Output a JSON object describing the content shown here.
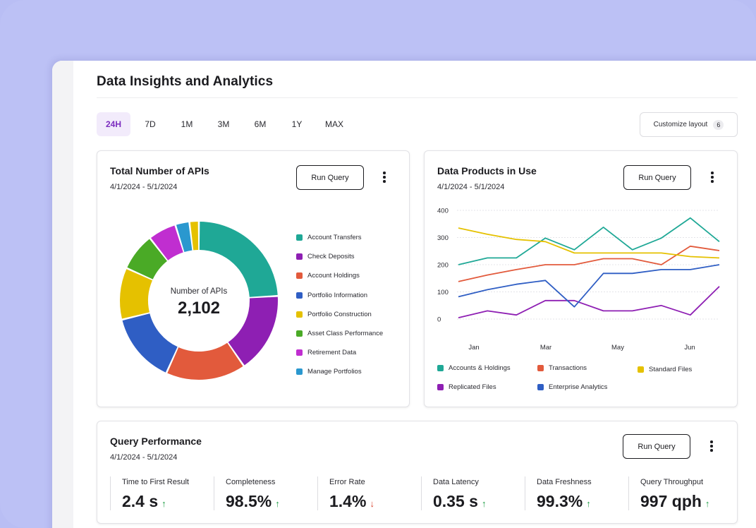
{
  "page": {
    "title": "Data Insights and Analytics"
  },
  "ranges": [
    {
      "label": "24H",
      "active": true
    },
    {
      "label": "7D",
      "active": false
    },
    {
      "label": "1M",
      "active": false
    },
    {
      "label": "3M",
      "active": false
    },
    {
      "label": "6M",
      "active": false
    },
    {
      "label": "1Y",
      "active": false
    },
    {
      "label": "MAX",
      "active": false
    }
  ],
  "customize": {
    "label": "Customize layout",
    "count": "6"
  },
  "apis_card": {
    "title": "Total Number of APIs",
    "date": "4/1/2024 - 5/1/2024",
    "run_label": "Run Query",
    "center_label": "Number of APIs",
    "center_value": "2,102"
  },
  "products_card": {
    "title": "Data Products in Use",
    "date": "4/1/2024 - 5/1/2024",
    "run_label": "Run Query"
  },
  "perf_card": {
    "title": "Query Performance",
    "date": "4/1/2024 - 5/1/2024",
    "run_label": "Run Query",
    "metrics": [
      {
        "label": "Time to First Result",
        "value": "2.4 s",
        "trend": "up"
      },
      {
        "label": "Completeness",
        "value": "98.5%",
        "trend": "up"
      },
      {
        "label": "Error Rate",
        "value": "1.4%",
        "trend": "down"
      },
      {
        "label": "Data Latency",
        "value": "0.35 s",
        "trend": "up"
      },
      {
        "label": "Data Freshness",
        "value": "99.3%",
        "trend": "up"
      },
      {
        "label": "Query Throughput",
        "value": "997 qph",
        "trend": "up"
      }
    ]
  },
  "colors": {
    "accent": "#7b2cbf",
    "up": "#1f9d46",
    "down": "#d9452f"
  },
  "chart_data": [
    {
      "type": "pie",
      "title": "Total Number of APIs",
      "categories": [
        "Account Transfers",
        "Check Deposits",
        "Account Holdings",
        "Portfolio Information",
        "Portfolio Construction",
        "Asset Class Performance",
        "Retirement Data",
        "Manage Portfolios"
      ],
      "values": [
        25,
        17,
        17,
        15,
        11,
        8,
        6,
        3
      ],
      "extra_unlabeled_slice": {
        "color": "#e5c100",
        "value": 2
      },
      "colors": [
        "#1fa896",
        "#8e1fb3",
        "#e25a3c",
        "#2f5ec4",
        "#e5c100",
        "#4aaa26",
        "#c02ed0",
        "#2a98cf"
      ],
      "legend_position": "right"
    },
    {
      "type": "line",
      "title": "Data Products in Use",
      "x_labels": [
        "Jan",
        "Mar",
        "May",
        "Jun"
      ],
      "ylim": [
        0,
        400
      ],
      "yticks": [
        0,
        100,
        200,
        300,
        400
      ],
      "grid": true,
      "legend_position": "bottom",
      "series": [
        {
          "name": "Accounts & Holdings",
          "color": "#1fa896",
          "values": [
            200,
            225,
            225,
            298,
            255,
            338,
            255,
            298,
            372,
            285
          ]
        },
        {
          "name": "Transactions",
          "color": "#e25a3c",
          "values": [
            138,
            162,
            182,
            200,
            200,
            222,
            222,
            200,
            268,
            252
          ]
        },
        {
          "name": "Standard Files",
          "color": "#e5c100",
          "values": [
            335,
            312,
            293,
            285,
            243,
            243,
            243,
            243,
            230,
            225
          ]
        },
        {
          "name": "Replicated Files",
          "color": "#8e1fb3",
          "values": [
            5,
            30,
            15,
            68,
            68,
            30,
            30,
            50,
            15,
            120
          ]
        },
        {
          "name": "Enterprise Analytics",
          "color": "#2f5ec4",
          "values": [
            82,
            108,
            128,
            142,
            45,
            168,
            168,
            182,
            182,
            200
          ]
        }
      ]
    }
  ]
}
